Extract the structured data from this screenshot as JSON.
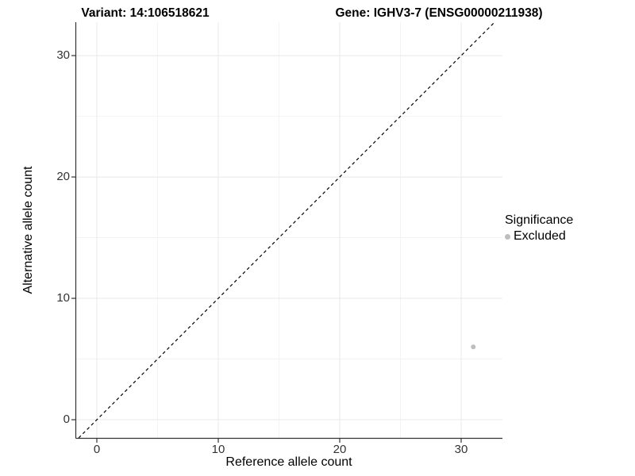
{
  "chart_data": {
    "type": "scatter",
    "title_left": "Variant: 14:106518621",
    "title_right": "Gene: IGHV3-7 (ENSG00000211938)",
    "xlabel": "Reference allele count",
    "ylabel": "Alternative allele count",
    "xlim": [
      -1.7,
      33.4
    ],
    "ylim": [
      -1.5,
      32.75
    ],
    "x_ticks": [
      0,
      10,
      20,
      30
    ],
    "y_ticks": [
      0,
      10,
      20,
      30
    ],
    "x_minor_ticks": [
      5,
      15,
      25
    ],
    "y_minor_ticks": [
      5,
      15,
      25
    ],
    "grid": true,
    "legend_position": "right",
    "reference_line": {
      "slope": 1,
      "intercept": 0,
      "style": "dashed",
      "color": "#000000"
    },
    "points": [
      {
        "x": 31,
        "y": 6,
        "series": "Excluded",
        "color": "#bebebe",
        "radius": 3
      }
    ],
    "legend": {
      "title": "Significance",
      "entries": [
        {
          "label": "Excluded",
          "color": "#bebebe",
          "marker": "dot"
        }
      ]
    },
    "colors": {
      "background": "#ffffff",
      "axis_line": "#333333",
      "tick_mark": "#333333",
      "grid_major": "#e8e8e8",
      "grid_minor": "#f3f3f3",
      "point": "#bebebe"
    }
  }
}
